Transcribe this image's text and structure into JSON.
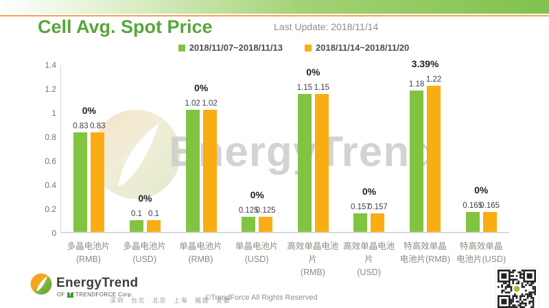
{
  "header": {
    "title": "Cell Avg. Spot Price",
    "last_update": "Last Update: 2018/11/14"
  },
  "chart_data": {
    "type": "bar",
    "title": "Cell Avg. Spot Price",
    "categories": [
      {
        "line1": "多晶电池片",
        "line2": "(RMB)"
      },
      {
        "line1": "多晶电池片",
        "line2": "(USD)"
      },
      {
        "line1": "单晶电池片",
        "line2": "(RMB)"
      },
      {
        "line1": "单晶电池片",
        "line2": "(USD)"
      },
      {
        "line1": "高效单晶电池片",
        "line2": "(RMB)"
      },
      {
        "line1": "高效单晶电池片",
        "line2": "(USD)"
      },
      {
        "line1": "特高效单晶",
        "line2": "电池片(RMB)"
      },
      {
        "line1": "特高效单晶",
        "line2": "电池片(USD)"
      }
    ],
    "series": [
      {
        "name": "2018/11/07~2018/11/13",
        "color": "#82c341",
        "values": [
          0.83,
          0.1,
          1.02,
          0.125,
          1.15,
          0.157,
          1.18,
          0.165
        ]
      },
      {
        "name": "2018/11/14~2018/11/20",
        "color": "#f9ad12",
        "values": [
          0.83,
          0.1,
          1.02,
          0.125,
          1.15,
          0.157,
          1.22,
          0.165
        ]
      }
    ],
    "change_labels": [
      "0%",
      "0%",
      "0%",
      "0%",
      "0%",
      "0%",
      "3.39%",
      "0%"
    ],
    "ylim": [
      0,
      1.4
    ],
    "yticks": [
      "0",
      "0.2",
      "0.4",
      "0.6",
      "0.8",
      "1",
      "1.2",
      "1.4"
    ],
    "grid": false,
    "legend_position": "top-center",
    "xlabel": "",
    "ylabel": ""
  },
  "watermark": {
    "text": "EnergyTrend"
  },
  "footer": {
    "brand": "EnergyTrend",
    "brand_of": "OF",
    "brand_mark": "T",
    "brand_corp": "TRENDFORCE Corp.",
    "cities": "深圳 台北 北京 上海 福建 安徽",
    "copyright": "©TrendForce All Rights Reserved"
  },
  "colors": {
    "title_green": "#57a53b",
    "bar_green": "#82c341",
    "bar_yellow": "#f9ad12",
    "rule_orange": "#efa057",
    "watermark_gray": "#cccccc"
  }
}
